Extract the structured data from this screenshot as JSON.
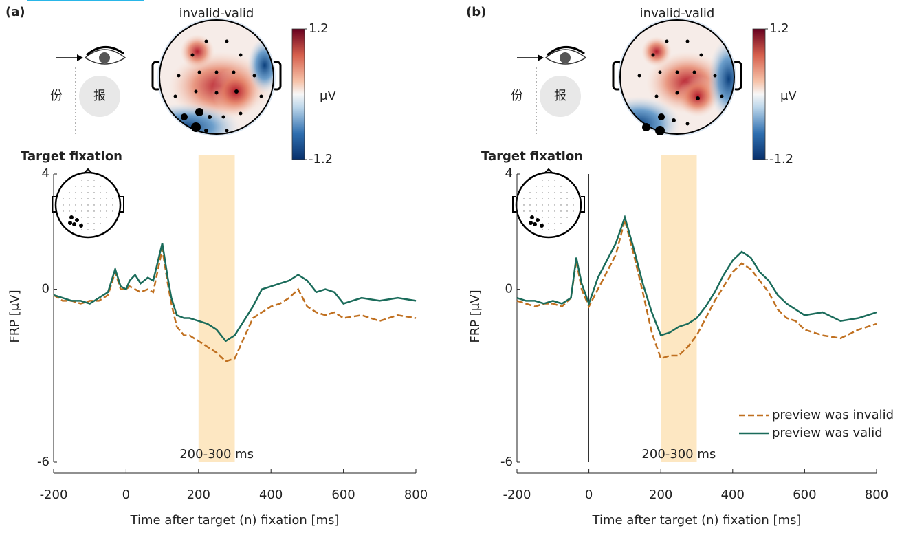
{
  "chart_data": [
    {
      "type": "line",
      "panel": "(a)",
      "map_title": "invalid-valid",
      "title": "Target fixation",
      "stimulus": [
        "份",
        "报"
      ],
      "colorbar_label": "μV",
      "colorbar_lim": [
        -1.2,
        1.2
      ],
      "colorbar_ticks": [
        1.2,
        -1.2
      ],
      "ylabel": "FRP [μV]",
      "xlabel": "Time after target (n) fixation [ms]",
      "highlight": [
        200,
        300
      ],
      "highlight_color": "#fde7c2",
      "annotation": "200-300 ms",
      "xlim": [
        -200,
        800
      ],
      "xticks": [
        -200,
        0,
        200,
        400,
        600,
        800
      ],
      "ylim": [
        -6,
        4
      ],
      "yticks": [
        -6,
        0,
        4
      ],
      "x": [
        -200,
        -175,
        -150,
        -125,
        -100,
        -75,
        -50,
        -30,
        -15,
        0,
        10,
        25,
        40,
        60,
        75,
        100,
        115,
        125,
        140,
        160,
        175,
        200,
        225,
        250,
        275,
        300,
        325,
        350,
        375,
        400,
        425,
        450,
        475,
        500,
        525,
        550,
        575,
        600,
        650,
        700,
        750,
        800
      ],
      "series": [
        {
          "color": "#c07020",
          "style": "dashed",
          "values": [
            -0.2,
            -0.4,
            -0.4,
            -0.5,
            -0.4,
            -0.4,
            -0.2,
            0.6,
            0.0,
            0.0,
            0.1,
            0.0,
            -0.1,
            0.0,
            -0.1,
            1.4,
            0.2,
            -0.5,
            -1.3,
            -1.6,
            -1.6,
            -1.8,
            -2.0,
            -2.2,
            -2.5,
            -2.4,
            -1.7,
            -1.0,
            -0.8,
            -0.6,
            -0.5,
            -0.3,
            0.0,
            -0.6,
            -0.8,
            -0.9,
            -0.8,
            -1.0,
            -0.9,
            -1.1,
            -0.9,
            -1.0
          ]
        },
        {
          "color": "#1a6b5a",
          "style": "solid",
          "values": [
            -0.2,
            -0.3,
            -0.4,
            -0.4,
            -0.5,
            -0.3,
            -0.1,
            0.7,
            0.1,
            0.0,
            0.3,
            0.5,
            0.2,
            0.4,
            0.3,
            1.6,
            0.4,
            -0.3,
            -0.9,
            -1.0,
            -1.0,
            -1.1,
            -1.2,
            -1.4,
            -1.8,
            -1.6,
            -1.1,
            -0.6,
            0.0,
            0.1,
            0.2,
            0.3,
            0.5,
            0.3,
            -0.1,
            0.0,
            -0.1,
            -0.5,
            -0.3,
            -0.4,
            -0.3,
            -0.4
          ]
        }
      ]
    },
    {
      "type": "line",
      "panel": "(b)",
      "map_title": "invalid-valid",
      "title": "Target fixation",
      "stimulus": [
        "份",
        "报"
      ],
      "colorbar_label": "μV",
      "colorbar_lim": [
        -1.2,
        1.2
      ],
      "colorbar_ticks": [
        1.2,
        -1.2
      ],
      "ylabel": "FRP [μV]",
      "xlabel": "Time after target (n) fixation [ms]",
      "highlight": [
        200,
        300
      ],
      "highlight_color": "#fde7c2",
      "annotation": "200-300 ms",
      "xlim": [
        -200,
        800
      ],
      "xticks": [
        -200,
        0,
        200,
        400,
        600,
        800
      ],
      "ylim": [
        -6,
        4
      ],
      "yticks": [
        -6,
        0,
        4
      ],
      "legend": "lower right",
      "x": [
        -200,
        -175,
        -150,
        -125,
        -100,
        -75,
        -50,
        -35,
        -20,
        0,
        25,
        50,
        75,
        100,
        125,
        150,
        175,
        200,
        225,
        250,
        275,
        300,
        325,
        350,
        375,
        400,
        425,
        450,
        475,
        500,
        525,
        550,
        575,
        600,
        650,
        700,
        750,
        800
      ],
      "series": [
        {
          "name": "preview was invalid",
          "color": "#c07020",
          "style": "dashed",
          "values": [
            -0.4,
            -0.5,
            -0.6,
            -0.5,
            -0.5,
            -0.6,
            -0.3,
            1.0,
            0.0,
            -0.6,
            0.0,
            0.6,
            1.2,
            2.4,
            1.2,
            -0.1,
            -1.5,
            -2.4,
            -2.3,
            -2.3,
            -2.0,
            -1.6,
            -1.0,
            -0.4,
            0.1,
            0.6,
            0.9,
            0.7,
            0.3,
            -0.1,
            -0.7,
            -1.0,
            -1.1,
            -1.4,
            -1.6,
            -1.7,
            -1.4,
            -1.2
          ]
        },
        {
          "name": "preview was valid",
          "color": "#1a6b5a",
          "style": "solid",
          "values": [
            -0.3,
            -0.4,
            -0.4,
            -0.5,
            -0.4,
            -0.5,
            -0.3,
            1.1,
            0.2,
            -0.5,
            0.4,
            1.0,
            1.6,
            2.5,
            1.4,
            0.2,
            -0.8,
            -1.6,
            -1.5,
            -1.3,
            -1.2,
            -1.0,
            -0.6,
            -0.1,
            0.5,
            1.0,
            1.3,
            1.1,
            0.6,
            0.3,
            -0.2,
            -0.5,
            -0.7,
            -0.9,
            -0.8,
            -1.1,
            -1.0,
            -0.8
          ]
        }
      ]
    }
  ]
}
